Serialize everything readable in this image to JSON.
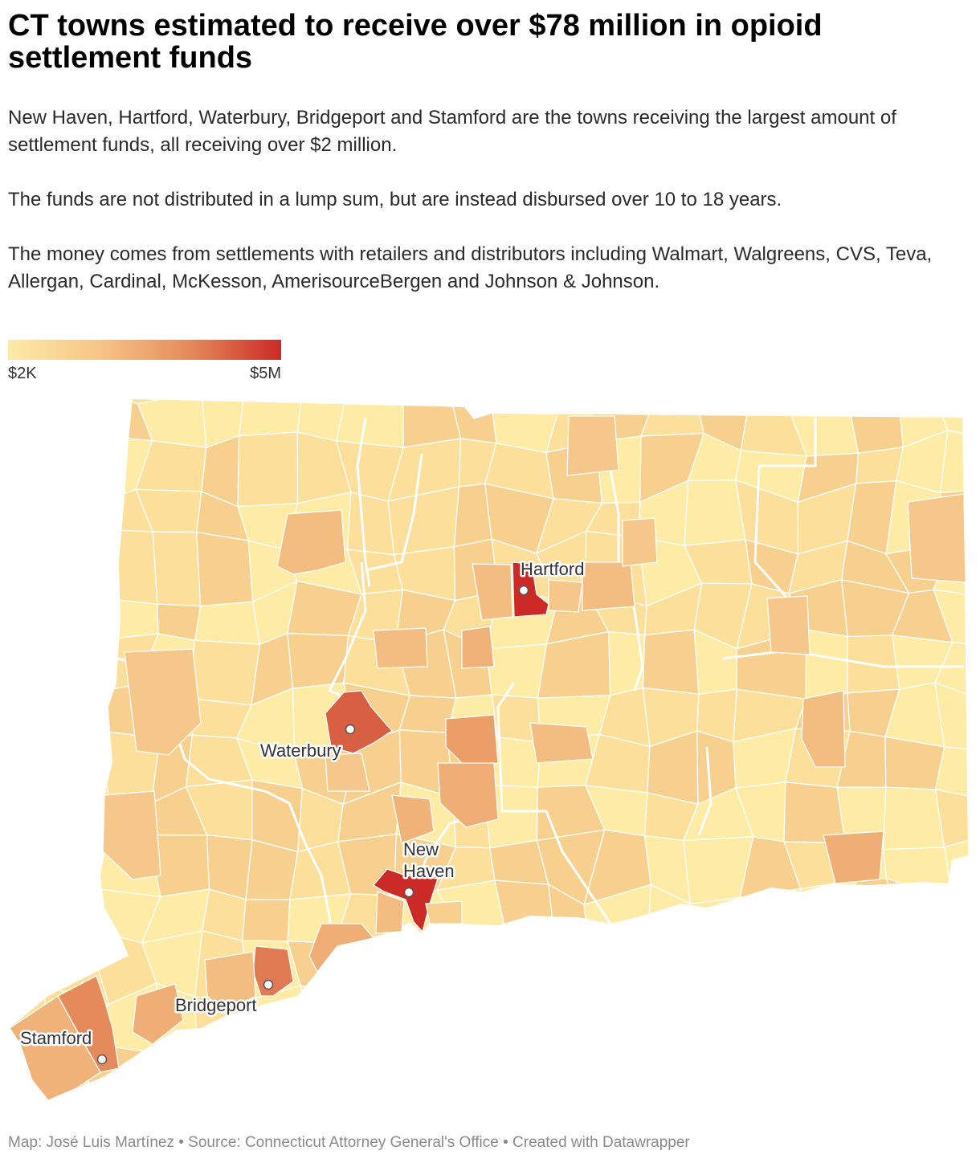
{
  "title": "CT towns estimated to receive over $78 million in opioid settlement funds",
  "description": {
    "p1": "New Haven, Hartford, Waterbury, Bridgeport and Stamford are the towns receiving the largest amount of settlement funds, all receiving over $2 million.",
    "p2": "The funds are not distributed in a lump sum, but are instead disbursed over 10 to 18 years.",
    "p3": "The money comes from settlements with retailers and distributors including Walmart, Walgreens, CVS, Teva, Allergan, Cardinal, McKesson, AmerisourceBergen and Johnson & Johnson."
  },
  "legend": {
    "min_label": "$2K",
    "max_label": "$5M",
    "colors": [
      "#fdeba6",
      "#f7c587",
      "#e58a5a",
      "#cc2a26"
    ]
  },
  "cities": {
    "hartford": "Hartford",
    "waterbury": "Waterbury",
    "new_haven_line1": "New",
    "new_haven_line2": "Haven",
    "bridgeport": "Bridgeport",
    "stamford": "Stamford"
  },
  "colors": {
    "lightest": "#fdeba6",
    "light": "#fbdf9b",
    "mid_light": "#f7d08f",
    "mid": "#f3bd82",
    "orange": "#e9965f",
    "dark_orange": "#d9694a",
    "red": "#cc2a26",
    "county_border": "#ffffff"
  },
  "footer": "Map: José Luis Martínez • Source: Connecticut Attorney General's Office • Created with Datawrapper"
}
